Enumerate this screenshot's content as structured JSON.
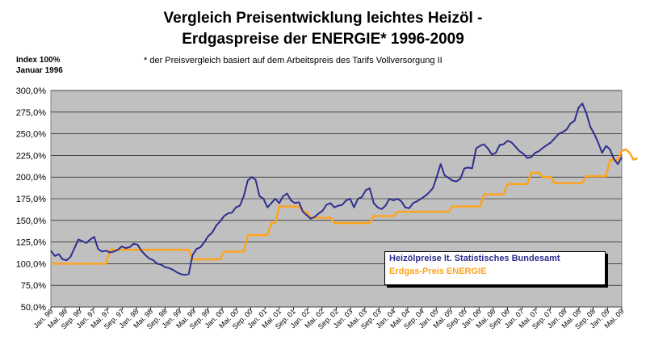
{
  "title_line1": "Vergleich Preisentwicklung  leichtes Heizöl -",
  "title_line2": "Erdgaspreise der ENERGIE* 1996-2009",
  "subtitle": "* der Preisvergleich basiert auf dem Arbeitspreis des Tarifs Vollversorgung II",
  "ylabel_line1": "Index 100%",
  "ylabel_line2": "Januar 1996",
  "colors": {
    "heizoel": "#2e2e8f",
    "erdgas": "#ffa319"
  },
  "chart_data": {
    "type": "line",
    "ylim": [
      50,
      300
    ],
    "yticks": [
      "50,0%",
      "75,0%",
      "100,0%",
      "125,0%",
      "150,0%",
      "175,0%",
      "200,0%",
      "225,0%",
      "250,0%",
      "275,0%",
      "300,0%"
    ],
    "xticks": [
      "Jan. 96",
      "Mai. 96",
      "Sep. 96",
      "Jan. 97",
      "Mai. 97",
      "Sep. 97",
      "Jan. 98",
      "Mai. 98",
      "Sep. 98",
      "Jan. 99",
      "Mai. 99",
      "Sep. 99",
      "Jan. 00",
      "Mai. 00",
      "Sep. 00",
      "Jan. 01",
      "Mai. 01",
      "Sep. 01",
      "Jan. 02",
      "Mai. 02",
      "Sep. 02",
      "Jan. 03",
      "Mai. 03",
      "Sep. 03",
      "Jan. 04",
      "Mai. 04",
      "Sep. 04",
      "Jan. 05",
      "Mai. 05",
      "Sep. 05",
      "Jan. 06",
      "Mai. 06",
      "Sep. 06",
      "Jan. 07",
      "Mai. 07",
      "Sep. 07",
      "Jan. 08",
      "Mai. 08",
      "Sep. 08",
      "Jan. 09",
      "Mai. 09"
    ],
    "grid": true,
    "legend": "bottom-right",
    "series": [
      {
        "name": "Heizölpreise lt. Statistisches Bundesamt",
        "values": [
          115,
          109,
          111,
          105,
          104,
          108,
          118,
          128,
          126,
          124,
          128,
          131,
          117,
          114,
          115,
          113,
          114,
          116,
          120,
          118,
          119,
          123,
          122,
          115,
          110,
          106,
          104,
          100,
          99,
          96,
          95,
          93,
          90,
          88,
          87,
          88,
          110,
          117,
          119,
          125,
          132,
          136,
          144,
          149,
          155,
          158,
          159,
          165,
          167,
          178,
          196,
          200,
          197,
          178,
          175,
          165,
          170,
          175,
          170,
          178,
          181,
          173,
          170,
          171,
          160,
          156,
          152,
          154,
          158,
          161,
          168,
          170,
          165,
          167,
          168,
          173,
          175,
          165,
          175,
          177,
          185,
          187,
          170,
          165,
          163,
          167,
          175,
          173,
          175,
          172,
          165,
          164,
          170,
          172,
          175,
          178,
          182,
          187,
          200,
          215,
          202,
          199,
          196,
          195,
          198,
          210,
          211,
          210,
          233,
          236,
          238,
          233,
          226,
          228,
          237,
          238,
          242,
          240,
          235,
          230,
          227,
          222,
          223,
          228,
          230,
          234,
          237,
          240,
          245,
          250,
          252,
          255,
          262,
          265,
          280,
          285,
          274,
          258,
          250,
          240,
          228,
          236,
          232,
          221,
          215,
          223
        ]
      },
      {
        "name": "Erdgas-Preis ENERGIE",
        "values": [
          100,
          100,
          100,
          100,
          100,
          100,
          100,
          100,
          100,
          100,
          100,
          100,
          100,
          100,
          100,
          116,
          116,
          116,
          116,
          116,
          116,
          116,
          116,
          116,
          116,
          116,
          116,
          116,
          116,
          116,
          116,
          116,
          116,
          116,
          116,
          116,
          105,
          105,
          105,
          105,
          105,
          105,
          105,
          105,
          114,
          114,
          114,
          114,
          114,
          114,
          133,
          133,
          133,
          133,
          133,
          133,
          147,
          147,
          166,
          166,
          166,
          166,
          166,
          166,
          160,
          160,
          153,
          153,
          153,
          153,
          153,
          153,
          147,
          147,
          147,
          147,
          147,
          147,
          147,
          147,
          147,
          147,
          155,
          155,
          155,
          155,
          155,
          155,
          160,
          160,
          160,
          160,
          160,
          160,
          160,
          160,
          160,
          160,
          160,
          160,
          160,
          160,
          166,
          166,
          166,
          166,
          166,
          166,
          166,
          166,
          180,
          180,
          180,
          180,
          180,
          180,
          192,
          192,
          192,
          192,
          192,
          192,
          205,
          205,
          205,
          200,
          200,
          200,
          193,
          193,
          193,
          193,
          193,
          193,
          193,
          193,
          201,
          201,
          201,
          201,
          201,
          201,
          220,
          220,
          220,
          230,
          232,
          228,
          220,
          222
        ]
      }
    ]
  }
}
